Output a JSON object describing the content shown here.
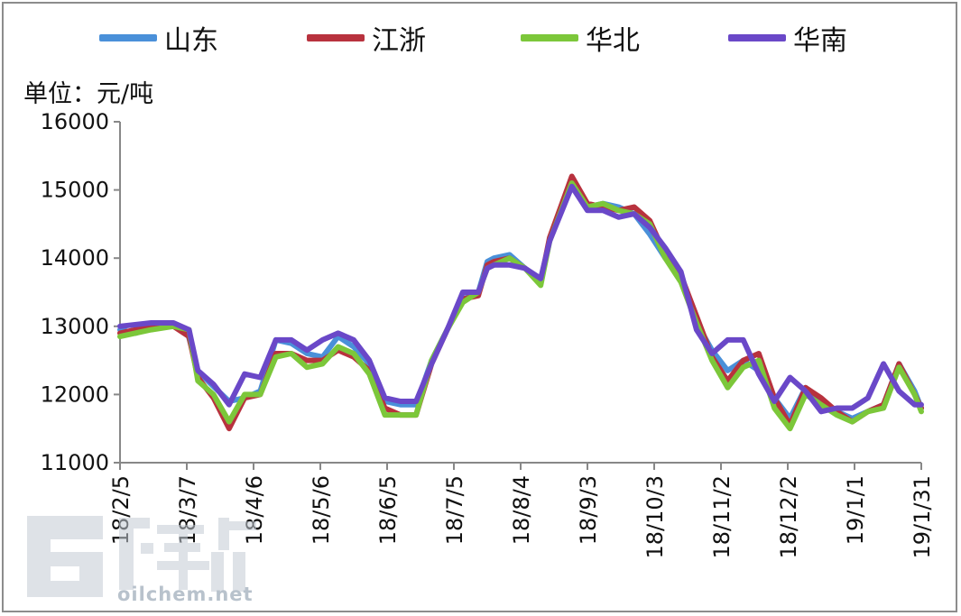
{
  "chart_data": {
    "type": "line",
    "unit_label": "单位：元/吨",
    "ylim": [
      11000,
      16000
    ],
    "y_ticks": [
      "11000",
      "12000",
      "13000",
      "14000",
      "15000",
      "16000"
    ],
    "x_ticks": [
      "18/2/5",
      "18/3/7",
      "18/4/6",
      "18/5/6",
      "18/6/5",
      "18/7/5",
      "18/8/4",
      "18/9/3",
      "18/10/3",
      "18/11/2",
      "18/12/2",
      "19/1/1",
      "19/1/31"
    ],
    "legend_position": "top",
    "grid": false,
    "series": [
      {
        "name": "山东",
        "color": "#4a90d9",
        "x": [
          0,
          1,
          2,
          3,
          4,
          5,
          6,
          7,
          8,
          9,
          10,
          11,
          12,
          13,
          14,
          15,
          16,
          17,
          18,
          19,
          20,
          21,
          22,
          23,
          24,
          25,
          26,
          27,
          28,
          29,
          30,
          31,
          32,
          33,
          34,
          35,
          36,
          37,
          38,
          39,
          40,
          41,
          42,
          43,
          44,
          45,
          46,
          47,
          48,
          49,
          50,
          51,
          52,
          53,
          54,
          55,
          56,
          57,
          58,
          59,
          60,
          61,
          62,
          63,
          64,
          65,
          66,
          67,
          68,
          69,
          70,
          71,
          72,
          73,
          74,
          75,
          76,
          77,
          78,
          79,
          80,
          81,
          82,
          83,
          84,
          85,
          86,
          87,
          88,
          89,
          90,
          91,
          92,
          93,
          94,
          95,
          96,
          97,
          98,
          99,
          100,
          101,
          102,
          103,
          104,
          105,
          106,
          107,
          108,
          109,
          110,
          111,
          112,
          113,
          114,
          115,
          116,
          117,
          118,
          119,
          120,
          121,
          122,
          123,
          124,
          125,
          126,
          127,
          128,
          129,
          130,
          131,
          132,
          133,
          134,
          135,
          136,
          137,
          138,
          139,
          140,
          141,
          142,
          143,
          144,
          145,
          146,
          147,
          148,
          149,
          150,
          151,
          152,
          153,
          154,
          155,
          156,
          157,
          158,
          159,
          160,
          161,
          162,
          163,
          164,
          165,
          166,
          167,
          168,
          169,
          170,
          171,
          172,
          173,
          174,
          175,
          176,
          177,
          178,
          179,
          180,
          181,
          182,
          183,
          184,
          185,
          186,
          187,
          188,
          189,
          190,
          191,
          192,
          193,
          194,
          195,
          196,
          197,
          198,
          199,
          200,
          201,
          202,
          203,
          204,
          205,
          206,
          207,
          208,
          209,
          210,
          211,
          212,
          213,
          214,
          215,
          216,
          217,
          218,
          219,
          220,
          221,
          222,
          223,
          224,
          225,
          226,
          227,
          228,
          229,
          230,
          231,
          232,
          233,
          234,
          235,
          236,
          237,
          238,
          239,
          240,
          241,
          242,
          243,
          244,
          245,
          246,
          247,
          248,
          249,
          250,
          251,
          252,
          253,
          254,
          255,
          256,
          257,
          258,
          259,
          260,
          261,
          262,
          263,
          264,
          265,
          266,
          267,
          268,
          269,
          270,
          271,
          272,
          273,
          274,
          275,
          276,
          277,
          278,
          279,
          280,
          281,
          282,
          283,
          284,
          285,
          286,
          287,
          288,
          289,
          290,
          291,
          292,
          293,
          294,
          295,
          296,
          297,
          298,
          299,
          300,
          301,
          302,
          303,
          304,
          305,
          306,
          307,
          308,
          309,
          310,
          311,
          312,
          313,
          314,
          315,
          316,
          317,
          318,
          319,
          320,
          321,
          322,
          323,
          324,
          325,
          326,
          327,
          328,
          329,
          330,
          331,
          332,
          333,
          334,
          335,
          336,
          337,
          338,
          339,
          340,
          341,
          342,
          343,
          344,
          345,
          346,
          347,
          348,
          349,
          350,
          351,
          352,
          353,
          354,
          355,
          356,
          357,
          358,
          359,
          360
        ],
        "points": [
          [
            0,
            12950
          ],
          [
            7,
            12900
          ],
          [
            21,
            13050
          ],
          [
            30,
            12950
          ],
          [
            35,
            12350
          ],
          [
            41,
            12150
          ],
          [
            49,
            11900
          ],
          [
            56,
            11950
          ],
          [
            63,
            12050
          ],
          [
            70,
            12800
          ],
          [
            77,
            12750
          ],
          [
            84,
            12600
          ],
          [
            91,
            12550
          ],
          [
            98,
            12850
          ],
          [
            105,
            12700
          ],
          [
            112,
            12450
          ],
          [
            119,
            11900
          ],
          [
            126,
            11850
          ],
          [
            133,
            11850
          ],
          [
            140,
            12500
          ],
          [
            147,
            12950
          ],
          [
            154,
            13400
          ],
          [
            161,
            13500
          ],
          [
            165,
            13950
          ],
          [
            168,
            14000
          ],
          [
            175,
            14050
          ],
          [
            182,
            13850
          ],
          [
            189,
            13650
          ],
          [
            193,
            14250
          ],
          [
            203,
            15150
          ],
          [
            210,
            14750
          ],
          [
            217,
            14800
          ],
          [
            224,
            14750
          ],
          [
            231,
            14650
          ],
          [
            238,
            14350
          ],
          [
            245,
            14000
          ],
          [
            252,
            13700
          ],
          [
            259,
            13050
          ],
          [
            266,
            12650
          ],
          [
            273,
            12350
          ],
          [
            280,
            12500
          ],
          [
            287,
            12350
          ],
          [
            294,
            11950
          ],
          [
            301,
            11650
          ],
          [
            308,
            12100
          ],
          [
            315,
            11900
          ],
          [
            322,
            11750
          ],
          [
            329,
            11650
          ],
          [
            336,
            11750
          ],
          [
            343,
            11850
          ],
          [
            350,
            12450
          ],
          [
            357,
            12050
          ],
          [
            360,
            11800
          ]
        ]
      },
      {
        "name": "江浙",
        "color": "#b8323e",
        "points": [
          [
            0,
            12900
          ],
          [
            14,
            13000
          ],
          [
            24,
            13000
          ],
          [
            31,
            12850
          ],
          [
            35,
            12250
          ],
          [
            42,
            11950
          ],
          [
            49,
            11500
          ],
          [
            56,
            11950
          ],
          [
            63,
            12000
          ],
          [
            70,
            12600
          ],
          [
            77,
            12600
          ],
          [
            84,
            12500
          ],
          [
            91,
            12500
          ],
          [
            98,
            12650
          ],
          [
            105,
            12550
          ],
          [
            112,
            12350
          ],
          [
            119,
            11800
          ],
          [
            126,
            11700
          ],
          [
            133,
            11700
          ],
          [
            140,
            12450
          ],
          [
            147,
            12950
          ],
          [
            154,
            13400
          ],
          [
            161,
            13450
          ],
          [
            165,
            13900
          ],
          [
            168,
            13950
          ],
          [
            175,
            14000
          ],
          [
            182,
            13850
          ],
          [
            189,
            13650
          ],
          [
            193,
            14300
          ],
          [
            203,
            15200
          ],
          [
            210,
            14800
          ],
          [
            217,
            14750
          ],
          [
            224,
            14700
          ],
          [
            231,
            14750
          ],
          [
            238,
            14550
          ],
          [
            245,
            14050
          ],
          [
            252,
            13750
          ],
          [
            259,
            13150
          ],
          [
            266,
            12550
          ],
          [
            273,
            12200
          ],
          [
            280,
            12500
          ],
          [
            287,
            12600
          ],
          [
            294,
            11950
          ],
          [
            301,
            11550
          ],
          [
            308,
            12100
          ],
          [
            315,
            11950
          ],
          [
            322,
            11750
          ],
          [
            329,
            11600
          ],
          [
            336,
            11750
          ],
          [
            343,
            11850
          ],
          [
            350,
            12450
          ],
          [
            357,
            12000
          ],
          [
            360,
            11800
          ]
        ]
      },
      {
        "name": "华北",
        "color": "#7cc73a",
        "points": [
          [
            0,
            12850
          ],
          [
            14,
            12950
          ],
          [
            24,
            13000
          ],
          [
            31,
            12950
          ],
          [
            35,
            12200
          ],
          [
            42,
            12000
          ],
          [
            49,
            11600
          ],
          [
            56,
            12000
          ],
          [
            63,
            12000
          ],
          [
            70,
            12550
          ],
          [
            77,
            12600
          ],
          [
            84,
            12400
          ],
          [
            91,
            12450
          ],
          [
            98,
            12700
          ],
          [
            105,
            12600
          ],
          [
            112,
            12300
          ],
          [
            119,
            11700
          ],
          [
            126,
            11700
          ],
          [
            133,
            11700
          ],
          [
            140,
            12500
          ],
          [
            147,
            12950
          ],
          [
            154,
            13350
          ],
          [
            161,
            13500
          ],
          [
            165,
            13850
          ],
          [
            168,
            13900
          ],
          [
            175,
            14000
          ],
          [
            182,
            13850
          ],
          [
            189,
            13600
          ],
          [
            193,
            14250
          ],
          [
            203,
            15100
          ],
          [
            210,
            14750
          ],
          [
            217,
            14800
          ],
          [
            224,
            14700
          ],
          [
            231,
            14650
          ],
          [
            238,
            14500
          ],
          [
            245,
            14000
          ],
          [
            252,
            13650
          ],
          [
            259,
            13050
          ],
          [
            266,
            12500
          ],
          [
            273,
            12100
          ],
          [
            280,
            12400
          ],
          [
            287,
            12500
          ],
          [
            294,
            11800
          ],
          [
            301,
            11500
          ],
          [
            308,
            12000
          ],
          [
            315,
            11850
          ],
          [
            322,
            11700
          ],
          [
            329,
            11600
          ],
          [
            336,
            11750
          ],
          [
            343,
            11800
          ],
          [
            350,
            12400
          ],
          [
            357,
            12000
          ],
          [
            360,
            11750
          ]
        ]
      },
      {
        "name": "华南",
        "color": "#6a48c8",
        "points": [
          [
            0,
            13000
          ],
          [
            14,
            13050
          ],
          [
            24,
            13050
          ],
          [
            31,
            12950
          ],
          [
            35,
            12350
          ],
          [
            42,
            12150
          ],
          [
            49,
            11850
          ],
          [
            56,
            12300
          ],
          [
            63,
            12250
          ],
          [
            70,
            12800
          ],
          [
            77,
            12800
          ],
          [
            84,
            12650
          ],
          [
            91,
            12800
          ],
          [
            98,
            12900
          ],
          [
            105,
            12800
          ],
          [
            112,
            12500
          ],
          [
            119,
            11950
          ],
          [
            126,
            11900
          ],
          [
            133,
            11900
          ],
          [
            140,
            12450
          ],
          [
            147,
            12950
          ],
          [
            154,
            13500
          ],
          [
            161,
            13500
          ],
          [
            165,
            13850
          ],
          [
            168,
            13900
          ],
          [
            175,
            13900
          ],
          [
            182,
            13850
          ],
          [
            189,
            13700
          ],
          [
            193,
            14250
          ],
          [
            203,
            15050
          ],
          [
            210,
            14700
          ],
          [
            217,
            14700
          ],
          [
            224,
            14600
          ],
          [
            231,
            14650
          ],
          [
            238,
            14450
          ],
          [
            245,
            14150
          ],
          [
            252,
            13800
          ],
          [
            259,
            12950
          ],
          [
            266,
            12600
          ],
          [
            273,
            12800
          ],
          [
            280,
            12800
          ],
          [
            287,
            12300
          ],
          [
            294,
            11900
          ],
          [
            301,
            12250
          ],
          [
            308,
            12050
          ],
          [
            315,
            11750
          ],
          [
            322,
            11800
          ],
          [
            329,
            11800
          ],
          [
            336,
            11950
          ],
          [
            343,
            12450
          ],
          [
            350,
            12050
          ],
          [
            357,
            11850
          ],
          [
            360,
            11850
          ]
        ]
      }
    ]
  },
  "watermark": {
    "text": "oilchem.net"
  }
}
